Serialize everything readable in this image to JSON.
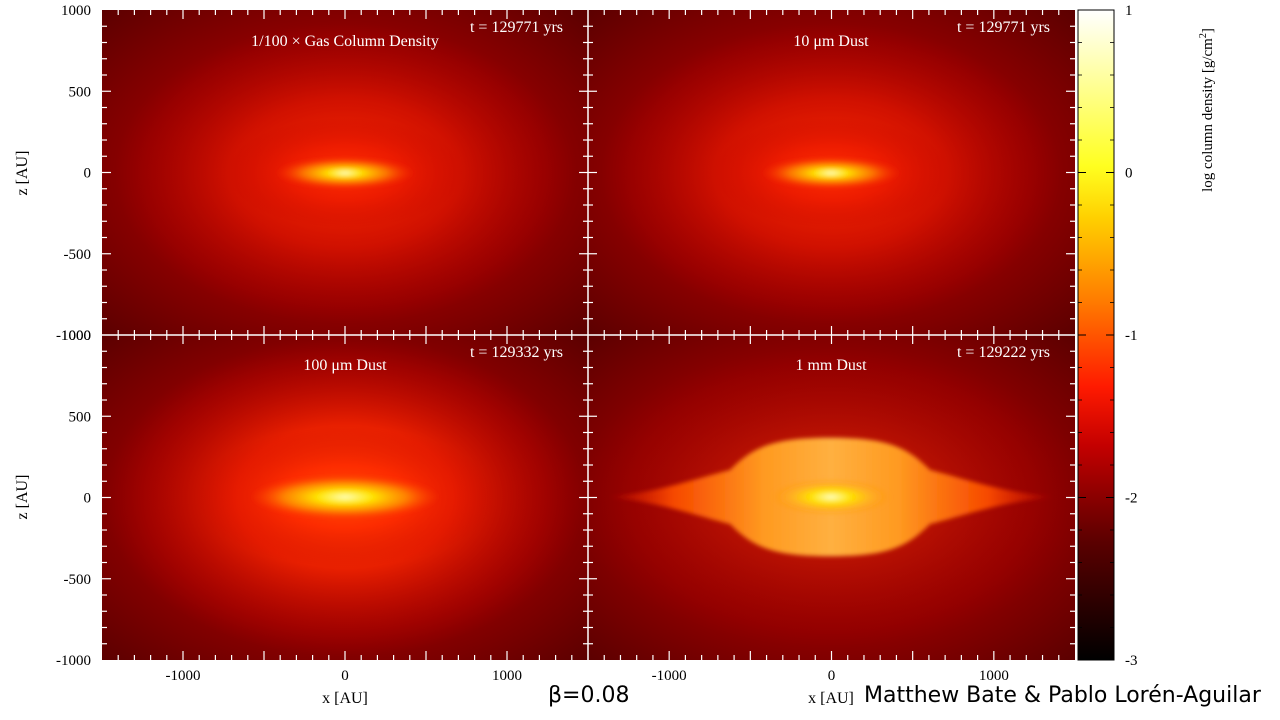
{
  "chart_data": {
    "type": "heatmap",
    "layout": "2x2 panels",
    "colorscale": [
      "#000000",
      "#6b0000",
      "#d40000",
      "#ff3000",
      "#ff9000",
      "#ffff00",
      "#ffffb0",
      "#ffffff"
    ],
    "colorbar": {
      "label": "log column density [g/cm",
      "label_sup": "2",
      "label_end": "]",
      "range": [
        -3,
        1
      ],
      "ticks": [
        "1",
        "0",
        "-1",
        "-2",
        "-3"
      ],
      "tick_values": [
        1,
        0,
        -1,
        -2,
        -3
      ]
    },
    "xlabel": "x [AU]",
    "ylabel": "z [AU]",
    "xlim": [
      -1500,
      1500
    ],
    "ylim": [
      -1000,
      1000
    ],
    "x_ticks": [
      "-1000",
      "0",
      "1000"
    ],
    "x_tick_values": [
      -1000,
      0,
      1000
    ],
    "y_ticks": [
      "1000",
      "500",
      "0",
      "-500",
      "-1000"
    ],
    "y_tick_values": [
      1000,
      500,
      0,
      -500,
      -1000
    ],
    "panels": [
      {
        "title": "1/100 × Gas Column Density",
        "time": "t = 129771 yrs",
        "peak_log_density": 0.6,
        "background_log_density": -2.2
      },
      {
        "title": "10 μm Dust",
        "time": "t = 129771 yrs",
        "peak_log_density": 0.6,
        "background_log_density": -2.2
      },
      {
        "title": "100 μm Dust",
        "time": "t = 129332 yrs",
        "peak_log_density": 0.6,
        "background_log_density": -2.15
      },
      {
        "title": "1 mm Dust",
        "time": "t = 129222 yrs",
        "peak_log_density": 0.6,
        "background_log_density": -2.25
      }
    ]
  },
  "caption": {
    "beta": "β=0.08",
    "credit": "Matthew Bate & Pablo Lorén-Aguilar"
  }
}
